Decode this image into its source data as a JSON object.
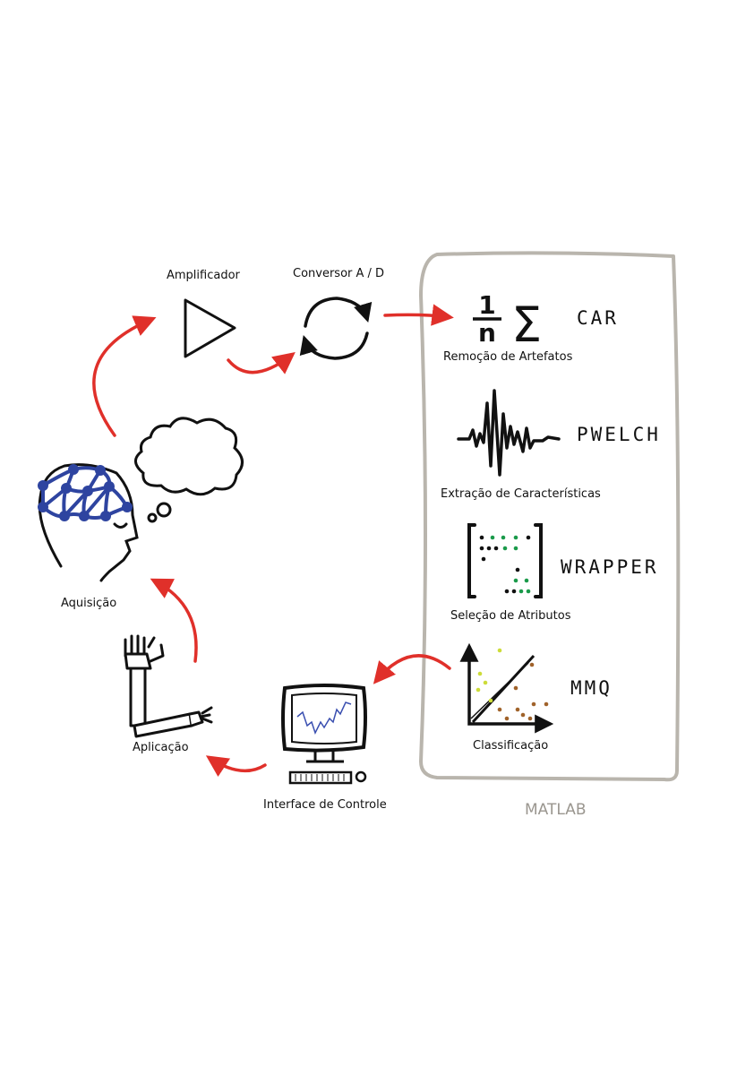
{
  "colors": {
    "arrow": "#e0302a",
    "electrode": "#2e44a0",
    "panel_border": "#b9b5ad",
    "matlab_text": "#9a968f",
    "ink": "#111111",
    "green_dot": "#1a9a4a",
    "yellow_dot": "#cddc39",
    "brown_dot": "#a0622a",
    "signal_line": "#3a4fb0"
  },
  "stages": {
    "amplifier": "Amplificador",
    "converter": "Conversor A / D",
    "acquisition": "Aquisição",
    "application": "Aplicação",
    "control_interface": "Interface de Controle"
  },
  "matlab_panel": {
    "title": "MATLAB",
    "steps": [
      {
        "code": "CAR",
        "label": "Remoção de Artefatos",
        "icon": "mean-sum-formula-icon"
      },
      {
        "code": "PWELCH",
        "label": "Extração de Características",
        "icon": "signal-waveform-icon"
      },
      {
        "code": "WRAPPER",
        "label": "Seleção de Atributos",
        "icon": "feature-matrix-icon"
      },
      {
        "code": "MMQ",
        "label": "Classificação",
        "icon": "scatter-regression-icon"
      }
    ]
  },
  "formula": {
    "numerator": "1",
    "denominator": "n",
    "operator": "Σ"
  }
}
